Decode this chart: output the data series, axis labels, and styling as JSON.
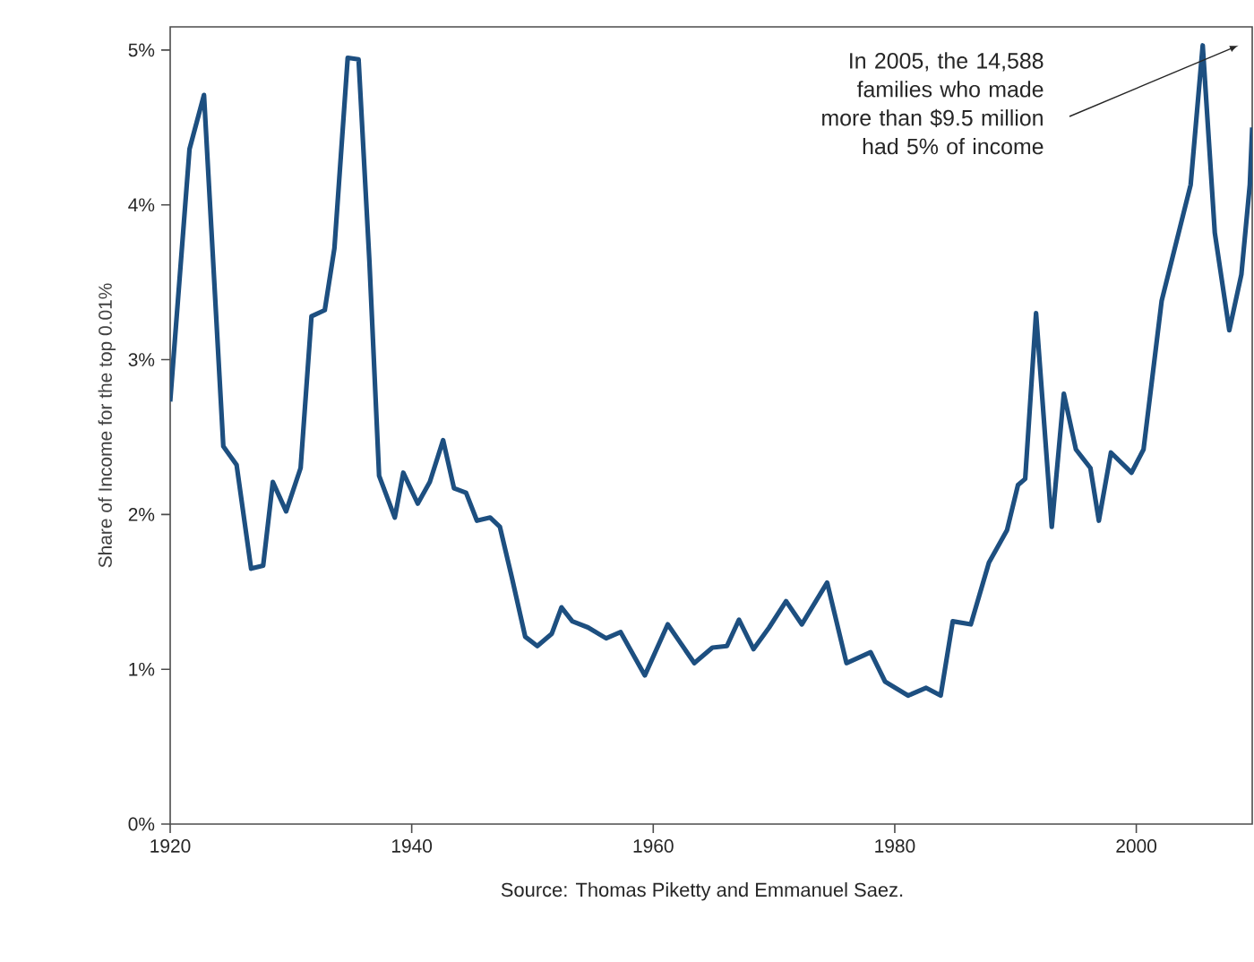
{
  "chart_data": {
    "type": "line",
    "ylabel": "Share of Income for the top 0.01%",
    "xlim": [
      1920,
      2009.6
    ],
    "xticks": [
      1920,
      1940,
      1960,
      1980,
      2000
    ],
    "ylim": [
      0,
      5.15
    ],
    "yticks": [
      {
        "value": 0,
        "label": "0%"
      },
      {
        "value": 1,
        "label": "1%"
      },
      {
        "value": 2,
        "label": "2%"
      },
      {
        "value": 3,
        "label": "3%"
      },
      {
        "value": 4,
        "label": "4%"
      },
      {
        "value": 5,
        "label": "5%"
      }
    ],
    "grid": false,
    "series": [
      {
        "color": "#1d4f80",
        "x": [
          1920.0,
          1921.6,
          1922.8,
          1924.4,
          1925.5,
          1926.7,
          1927.7,
          1928.5,
          1929.6,
          1930.8,
          1931.7,
          1932.8,
          1933.6,
          1934.7,
          1935.6,
          1936.5,
          1937.3,
          1938.6,
          1939.3,
          1940.5,
          1941.5,
          1942.6,
          1943.5,
          1944.5,
          1945.4,
          1946.5,
          1947.3,
          1948.3,
          1949.4,
          1950.4,
          1951.6,
          1952.4,
          1953.3,
          1954.6,
          1956.1,
          1957.3,
          1959.3,
          1961.2,
          1963.4,
          1964.9,
          1966.1,
          1967.1,
          1968.3,
          1969.6,
          1971.0,
          1972.3,
          1974.4,
          1976.0,
          1978.0,
          1979.2,
          1981.1,
          1982.6,
          1983.8,
          1984.8,
          1986.3,
          1987.8,
          1989.3,
          1990.2,
          1990.8,
          1991.7,
          1993.0,
          1994.0,
          1995.0,
          1996.2,
          1996.9,
          1997.9,
          1999.6,
          2000.6,
          2002.1,
          2004.5,
          2005.5,
          2006.5,
          2007.7,
          2008.7,
          2009.4,
          2009.6
        ],
        "values": [
          2.73,
          4.36,
          4.71,
          2.44,
          2.32,
          1.65,
          1.67,
          2.21,
          2.02,
          2.3,
          3.28,
          3.32,
          3.72,
          4.95,
          4.94,
          3.63,
          2.25,
          1.98,
          2.27,
          2.07,
          2.21,
          2.48,
          2.17,
          2.14,
          1.96,
          1.98,
          1.92,
          1.59,
          1.21,
          1.15,
          1.23,
          1.4,
          1.31,
          1.27,
          1.2,
          1.24,
          0.96,
          1.29,
          1.04,
          1.14,
          1.15,
          1.32,
          1.13,
          1.27,
          1.44,
          1.29,
          1.56,
          1.04,
          1.11,
          0.92,
          0.83,
          0.88,
          0.83,
          1.31,
          1.29,
          1.69,
          1.9,
          2.19,
          2.23,
          3.3,
          1.92,
          2.78,
          2.42,
          2.3,
          1.96,
          2.4,
          2.27,
          2.42,
          3.38,
          4.13,
          5.03,
          3.82,
          3.19,
          3.55,
          4.13,
          4.5
        ]
      }
    ],
    "annotations": [
      "In 2005, the 14,588 families who made more than $9.5 million had 5% of income",
      "Source: Thomas Piketty and Emmanuel Saez."
    ]
  }
}
